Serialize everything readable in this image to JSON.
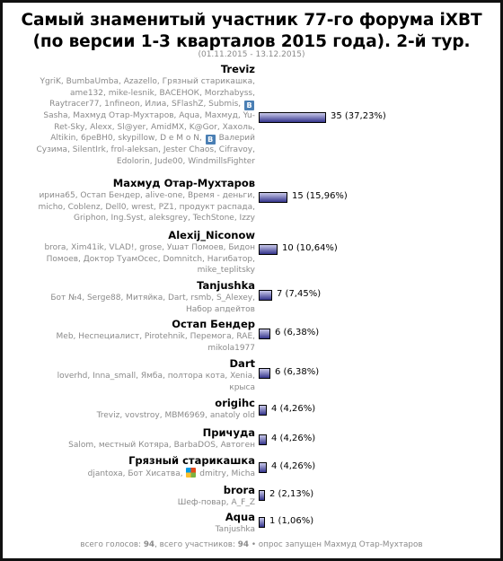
{
  "title_line1": "Самый знаменитый участник 77-го форума iXBT",
  "title_line2": "(по версии 1-3 кварталов 2015 года). 2-й тур.",
  "period": "(01.11.2015 - 13.12.2015)",
  "chart_data": {
    "type": "bar",
    "orientation": "horizontal",
    "total_votes": 94,
    "categories": [
      "Treviz",
      "Махмуд Отар-Мухтаров",
      "Alexij_Niconow",
      "Tanjushka",
      "Остап Бендер",
      "Dart",
      "origihc",
      "Причуда",
      "Грязный старикашка",
      "brora",
      "Aqua"
    ],
    "values": [
      35,
      15,
      10,
      7,
      6,
      6,
      4,
      4,
      4,
      2,
      1
    ],
    "labels": [
      "35 (37,23%)",
      "15 (15,96%)",
      "10 (10,64%)",
      "7 (7,45%)",
      "6 (6,38%)",
      "6 (6,38%)",
      "4 (4,26%)",
      "4 (4,26%)",
      "4 (4,26%)",
      "2 (2,13%)",
      "1 (1,06%)"
    ],
    "bar_color": "#34348c"
  },
  "voters": [
    [
      "YgriK, BumbaUmba, Azazello, Грязный старикашка,",
      "ame132, mike-lesnik, ВАСЕНОК, Morzhabyss,",
      "Raytracer77, 1nfineon, Илиа, SFlashZ, Submis, {B}",
      "Sasha, Махмуд Отар-Мухтаров, Aqua, Махмуд, Yu-",
      "Ret-Sky, Alexx, Sl@yer, AmidMX, K@Gor, Хахоль,",
      "Altikin, 6реВН0, skypillow, D e M o N, {B} Валерий",
      "Сузима, SilentIrk, frol-aleksan, Jester Chaos, Cifravoy,",
      "Edolorin, Jude00, WindmillsFighter"
    ],
    [
      "ирина65, Остап Бендер, alive-one, Время - деньги,",
      "micho, Coblenz, Dell0, wrest, PZ1, продукт распада,",
      "Griphon, Ing.Syst, aleksgrey, TechStone, Izzy"
    ],
    [
      "brora, Xim41ik, VLAD!, grose, Ушат Помоев, Бидон",
      "Помоев, Доктор ТуамОсес, Domnitch, Нагибатор,",
      "mike_teplitsky"
    ],
    [
      "Бот №4, Serge88, Митяйка, Dart, rsmb, S_Alexey,",
      "Набор апдейтов"
    ],
    [
      "Meb, Неспециалист, Pirotehnik, Перемога, RAE,",
      "mikola1977"
    ],
    [
      "loverhd, Inna_small, Ямба, полтора кота, Xenia,",
      "крыса"
    ],
    [
      "Treviz, vovstroy, MBM6969, anatoly old"
    ],
    [
      "Salom, местный Котяра, BarbaDOS, Автоген"
    ],
    [
      "djantoxa, Бот Хисатва, {MS} dmitry, Micha"
    ],
    [
      "Шеф-повар, A_F_Z"
    ],
    [
      "Tanjushka"
    ]
  ],
  "footer": {
    "votes_label": "всего голосов:",
    "votes_value": "94",
    "participants_label": ", всего участников:",
    "participants_value": "94",
    "started_by": "• опрос запущен Махмуд Отар-Мухтаров"
  },
  "icons": {
    "B": "b-badge-icon",
    "MS": "multicolor-avatar-icon"
  }
}
